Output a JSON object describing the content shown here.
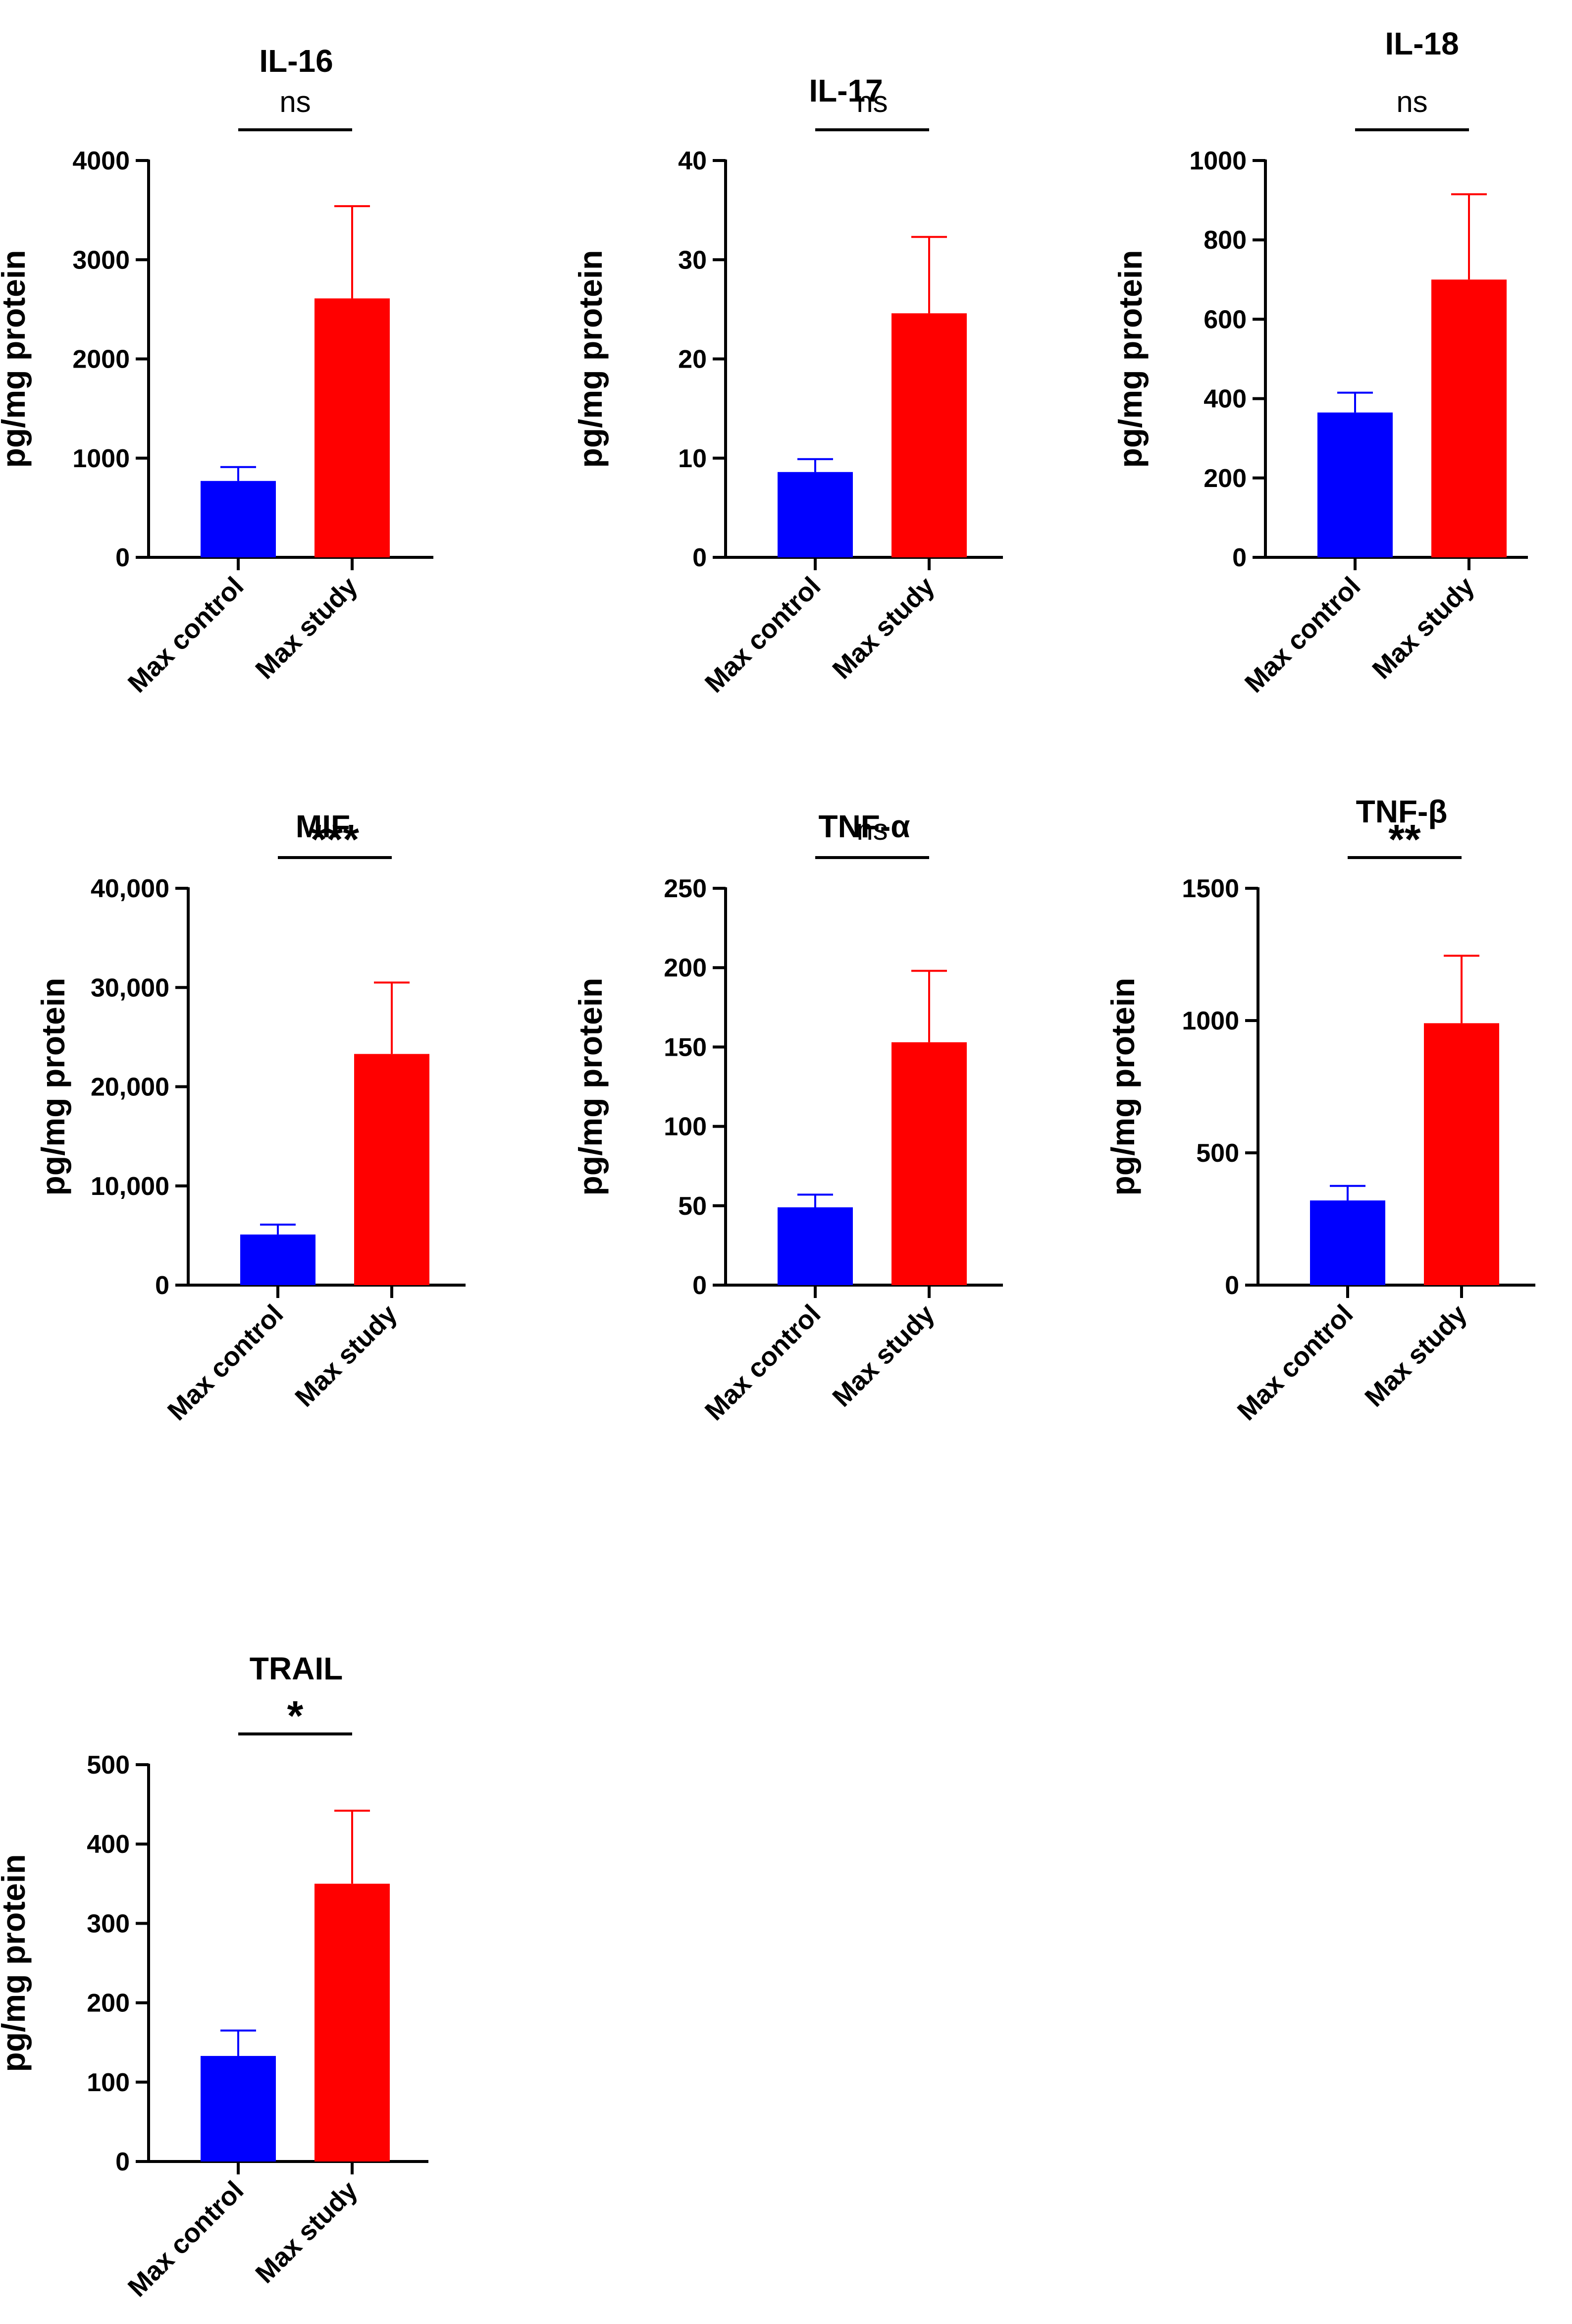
{
  "chart_data": [
    {
      "type": "bar",
      "title": "IL-16",
      "ylabel": "pg/mg protein",
      "xlabel": "",
      "categories": [
        "Max control",
        "Max study"
      ],
      "values": [
        770,
        2610
      ],
      "error_upper": [
        910,
        3540
      ],
      "ylim": [
        0,
        4000
      ],
      "yticks": [
        0,
        1000,
        2000,
        3000,
        4000
      ],
      "ytick_labels": [
        "0",
        "1000",
        "2000",
        "3000",
        "4000"
      ],
      "significance": "ns",
      "colors": [
        "#0000ff",
        "#ff0000"
      ]
    },
    {
      "type": "bar",
      "title": "IL-17",
      "ylabel": "pg/mg protein",
      "xlabel": "",
      "categories": [
        "Max control",
        "Max study"
      ],
      "values": [
        8.6,
        24.6
      ],
      "error_upper": [
        9.9,
        32.3
      ],
      "ylim": [
        0,
        40
      ],
      "yticks": [
        0,
        10,
        20,
        30,
        40
      ],
      "ytick_labels": [
        "0",
        "10",
        "20",
        "30",
        "40"
      ],
      "significance": "ns",
      "colors": [
        "#0000ff",
        "#ff0000"
      ]
    },
    {
      "type": "bar",
      "title": "IL-18",
      "ylabel": "pg/mg protein",
      "xlabel": "",
      "categories": [
        "Max control",
        "Max study"
      ],
      "values": [
        365,
        700
      ],
      "error_upper": [
        415,
        915
      ],
      "ylim": [
        0,
        1000
      ],
      "yticks": [
        0,
        200,
        400,
        600,
        800,
        1000
      ],
      "ytick_labels": [
        "0",
        "200",
        "400",
        "600",
        "800",
        "1000"
      ],
      "significance": "ns",
      "colors": [
        "#0000ff",
        "#ff0000"
      ]
    },
    {
      "type": "bar",
      "title": "MIF",
      "ylabel": "pg/mg protein",
      "xlabel": "",
      "categories": [
        "Max control",
        "Max study"
      ],
      "values": [
        5100,
        23300
      ],
      "error_upper": [
        6100,
        30500
      ],
      "ylim": [
        0,
        40000
      ],
      "yticks": [
        0,
        10000,
        20000,
        30000,
        40000
      ],
      "ytick_labels": [
        "0",
        "10,000",
        "20,000",
        "30,000",
        "40,000"
      ],
      "significance": "***",
      "colors": [
        "#0000ff",
        "#ff0000"
      ]
    },
    {
      "type": "bar",
      "title": "TNF-α",
      "ylabel": "pg/mg protein",
      "xlabel": "",
      "categories": [
        "Max control",
        "Max study"
      ],
      "values": [
        49,
        153
      ],
      "error_upper": [
        57,
        198
      ],
      "ylim": [
        0,
        250
      ],
      "yticks": [
        0,
        50,
        100,
        150,
        200,
        250
      ],
      "ytick_labels": [
        "0",
        "50",
        "100",
        "150",
        "200",
        "250"
      ],
      "significance": "ns",
      "colors": [
        "#0000ff",
        "#ff0000"
      ]
    },
    {
      "type": "bar",
      "title": "TNF-β",
      "ylabel": "pg/mg protein",
      "xlabel": "",
      "categories": [
        "Max control",
        "Max study"
      ],
      "values": [
        320,
        990
      ],
      "error_upper": [
        375,
        1245
      ],
      "ylim": [
        0,
        1500
      ],
      "yticks": [
        0,
        500,
        1000,
        1500
      ],
      "ytick_labels": [
        "0",
        "500",
        "1000",
        "1500"
      ],
      "significance": "**",
      "colors": [
        "#0000ff",
        "#ff0000"
      ]
    },
    {
      "type": "bar",
      "title": "TRAIL",
      "ylabel": "pg/mg protein",
      "xlabel": "",
      "categories": [
        "Max control",
        "Max study"
      ],
      "values": [
        133,
        350
      ],
      "error_upper": [
        165,
        442
      ],
      "ylim": [
        0,
        500
      ],
      "yticks": [
        0,
        100,
        200,
        300,
        400,
        500
      ],
      "ytick_labels": [
        "0",
        "100",
        "200",
        "300",
        "400",
        "500"
      ],
      "significance": "*",
      "colors": [
        "#0000ff",
        "#ff0000"
      ]
    }
  ]
}
